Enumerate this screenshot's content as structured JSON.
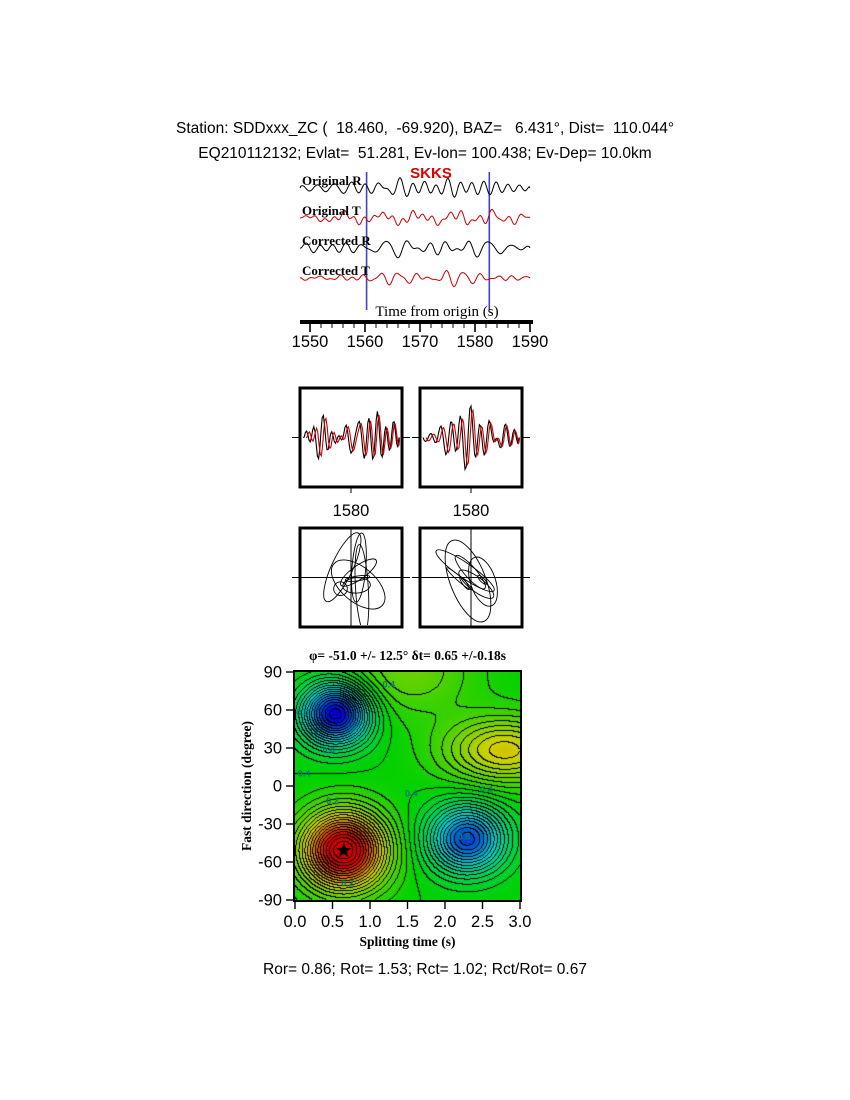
{
  "header": {
    "line1": "Station: SDDxxx_ZC (  18.460,  -69.920), BAZ=   6.431°, Dist=  110.044°",
    "line2": "EQ210112132; Evlat=  51.281, Ev-lon= 100.438; Ev-Dep= 10.0km"
  },
  "footer": {
    "stats": "Ror= 0.86; Rot= 1.53; Rct= 1.02; Rct/Rot= 0.67"
  },
  "colors": {
    "trace_red": "#cc0000",
    "window_line_blue": "#4444bf",
    "phase_red": "#dd0000",
    "contour_label_teal": "#007a7a"
  },
  "chart_data": [
    {
      "type": "line",
      "name": "seismogram-traces",
      "phase": "SKKS",
      "xlabel": "Time from origin (s)",
      "xlim": [
        1548,
        1591
      ],
      "xticks": [
        1550,
        1560,
        1570,
        1580,
        1590
      ],
      "xticks_minor_step": 2,
      "window_lines": [
        1560.3,
        1582.6
      ],
      "traces": [
        {
          "label": "Original R",
          "color": "#000000",
          "seed": 3,
          "amp": 11
        },
        {
          "label": "Original T",
          "color": "#cc0000",
          "seed": 7,
          "amp": 9
        },
        {
          "label": "Corrected R",
          "color": "#000000",
          "seed": 12,
          "amp": 10
        },
        {
          "label": "Corrected T",
          "color": "#cc0000",
          "seed": 21,
          "amp": 8
        }
      ]
    },
    {
      "type": "line",
      "name": "window-comparison",
      "colors": [
        "#000000",
        "#cc0000"
      ],
      "panels": [
        {
          "xtick": "1580",
          "seed": 31
        },
        {
          "xtick": "1580",
          "seed": 47
        }
      ]
    },
    {
      "type": "line",
      "name": "particle-motion",
      "panels": [
        {
          "seed": 53,
          "ellipses": 8,
          "rot_min": 0,
          "rot_max": 180
        },
        {
          "seed": 66,
          "ellipses": 8,
          "rot_min": 30,
          "rot_max": 72
        }
      ]
    },
    {
      "type": "heatmap",
      "name": "error-surface",
      "title": "φ= -51.0 +/- 12.5° δt= 0.65 +/-0.18s",
      "xlabel": "Splitting time (s)",
      "ylabel": "Fast direction (degree)",
      "xlim": [
        0,
        3
      ],
      "ylim": [
        -90,
        90
      ],
      "xticks": [
        "0.0",
        "0.5",
        "1.0",
        "1.5",
        "2.0",
        "2.5",
        "3.0"
      ],
      "yticks": [
        "90",
        "60",
        "30",
        "0",
        "-30",
        "-60",
        "-90"
      ],
      "contour_step": 0.1,
      "best_fit": {
        "dt": 0.65,
        "dt_err": 0.18,
        "phi": -51.0,
        "phi_err": 12.5,
        "marker": "star"
      },
      "features": [
        {
          "amp": 1.9,
          "t": 0.65,
          "phi": -51,
          "st": 0.55,
          "sphi": 30
        },
        {
          "amp": -1.7,
          "t": 0.55,
          "phi": 57,
          "st": 0.45,
          "sphi": 24
        },
        {
          "amp": -1.35,
          "t": 2.3,
          "phi": -42,
          "st": 0.5,
          "sphi": 26
        },
        {
          "amp": 0.85,
          "t": 2.8,
          "phi": 28,
          "st": 0.8,
          "sphi": 26
        },
        {
          "amp": 0.4,
          "t": 1.5,
          "phi": 90,
          "st": 0.9,
          "sphi": 35
        }
      ],
      "contour_labels": [
        {
          "t": 0.1,
          "phi": 58,
          "text": "0.5"
        },
        {
          "t": 0.45,
          "phi": 28,
          "text": "0.6"
        },
        {
          "t": 1.25,
          "phi": 80,
          "text": "0.4"
        },
        {
          "t": 0.12,
          "phi": 10,
          "text": "0.4"
        },
        {
          "t": 0.5,
          "phi": -12,
          "text": "0.2"
        },
        {
          "t": 1.55,
          "phi": -6,
          "text": "0.4"
        },
        {
          "t": 2.55,
          "phi": -3,
          "text": "0.4"
        },
        {
          "t": 2.25,
          "phi": -40,
          "text": "0.8"
        },
        {
          "t": 0.7,
          "phi": -77,
          "text": "0.2"
        }
      ]
    }
  ]
}
